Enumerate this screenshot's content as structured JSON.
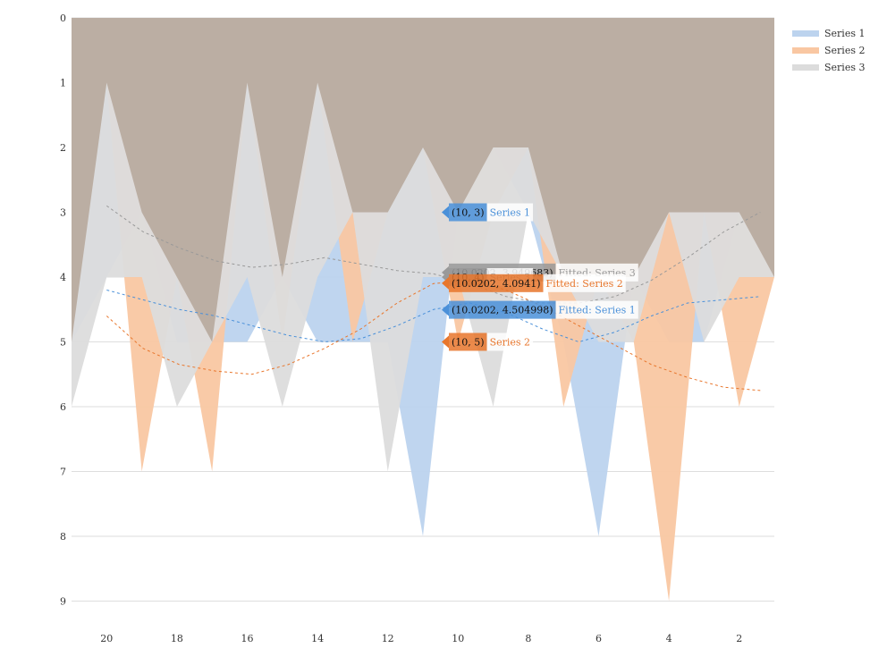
{
  "chart_data": {
    "type": "area",
    "x_reversed": true,
    "y_reversed": true,
    "xlim": [
      21,
      1
    ],
    "ylim": [
      0,
      9.3
    ],
    "x_ticks": [
      20,
      18,
      16,
      14,
      12,
      10,
      8,
      6,
      4,
      2
    ],
    "y_ticks": [
      0,
      1,
      2,
      3,
      4,
      5,
      6,
      7,
      8,
      9
    ],
    "grid": "horizontal",
    "legend_position": "top-right",
    "x": [
      21,
      20,
      19,
      18,
      17,
      16,
      15,
      14,
      13,
      12,
      11,
      10,
      9,
      8,
      7,
      6,
      5,
      4,
      3,
      2,
      1
    ],
    "series": [
      {
        "name": "Series 1",
        "color": "#4a90d9",
        "fill": "#bcd3ee",
        "values": [
          5,
          4,
          3,
          5,
          5,
          5,
          4,
          5,
          5,
          5,
          8,
          3,
          2,
          3,
          5,
          8,
          4,
          5,
          5,
          3,
          4
        ],
        "trend": [
          4.2,
          4.35,
          4.5,
          4.6,
          4.75,
          4.9,
          5.0,
          4.95,
          4.75,
          4.5,
          4.4,
          4.55,
          4.8,
          5.0,
          4.85,
          4.6,
          4.4,
          4.35,
          4.3
        ]
      },
      {
        "name": "Series 2",
        "color": "#e8762c",
        "fill": "#f9c7a2",
        "values": [
          5,
          1,
          7,
          4,
          7,
          1,
          5,
          1,
          5,
          3,
          2,
          5,
          3,
          2,
          6,
          4,
          5,
          9,
          3,
          6,
          4
        ],
        "trend": [
          4.6,
          5.1,
          5.35,
          5.45,
          5.5,
          5.35,
          5.1,
          4.8,
          4.4,
          4.1,
          4.05,
          4.2,
          4.45,
          4.75,
          5.05,
          5.35,
          5.55,
          5.7,
          5.75
        ]
      },
      {
        "name": "Series 3",
        "color": "#999999",
        "fill": "#dcdcdc",
        "values": [
          6,
          4,
          4,
          6,
          5,
          4,
          6,
          4,
          3,
          7,
          4,
          4,
          6,
          3,
          4,
          5,
          5,
          3,
          5,
          4,
          4
        ],
        "trend": [
          2.9,
          3.3,
          3.55,
          3.75,
          3.85,
          3.8,
          3.7,
          3.8,
          3.9,
          3.95,
          4.1,
          4.3,
          4.4,
          4.4,
          4.3,
          4.05,
          3.7,
          3.3,
          3.0
        ]
      }
    ],
    "tooltips": [
      {
        "point": "(10, 3)",
        "label": "Series 1",
        "series": 0,
        "y": 3
      },
      {
        "point": "(10.0202, 3.949683)",
        "label": "Fitted: Series 3",
        "series": 2,
        "y": 3.949683
      },
      {
        "point": "(10, 4)",
        "label": "Series 3",
        "series": 2,
        "y": 4
      },
      {
        "point": "(10.0202, 4.0941)",
        "label": "Fitted: Series 2",
        "series": 1,
        "y": 4.0941
      },
      {
        "point": "(10.0202, 4.504998)",
        "label": "Fitted: Series 1",
        "series": 0,
        "y": 4.504998
      },
      {
        "point": "(10, 5)",
        "label": "Series 2",
        "series": 1,
        "y": 5
      }
    ],
    "overlay_color": "#b7a89c"
  }
}
